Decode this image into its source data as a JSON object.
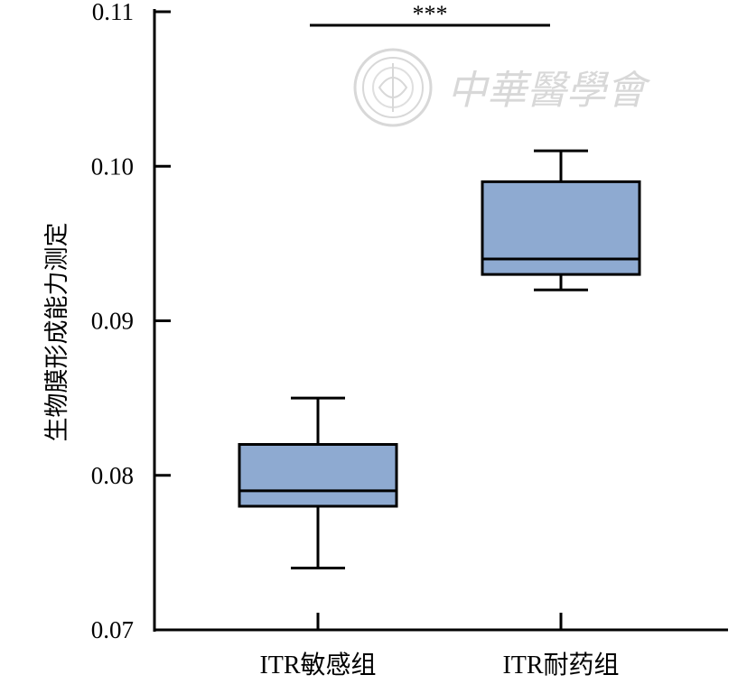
{
  "chart_data": {
    "type": "box",
    "title": "",
    "xlabel": "",
    "ylabel": "生物膜形成能力测定",
    "ylim": [
      0.07,
      0.11
    ],
    "yticks": [
      0.07,
      0.08,
      0.09,
      0.1,
      0.11
    ],
    "ytick_labels": [
      "0.07",
      "0.08",
      "0.09",
      "0.10",
      "0.11"
    ],
    "categories": [
      "ITR敏感组",
      "ITR耐药组"
    ],
    "boxes": [
      {
        "category": "ITR敏感组",
        "min": 0.074,
        "q1": 0.078,
        "median": 0.079,
        "q3": 0.082,
        "max": 0.085
      },
      {
        "category": "ITR耐药组",
        "min": 0.092,
        "q1": 0.093,
        "median": 0.094,
        "q3": 0.099,
        "max": 0.101
      }
    ],
    "box_fill": "#8eaad1",
    "grid": false,
    "significance": {
      "between": [
        "ITR敏感组",
        "ITR耐药组"
      ],
      "label": "***"
    },
    "watermark": {
      "text": "中華醫學會"
    }
  }
}
